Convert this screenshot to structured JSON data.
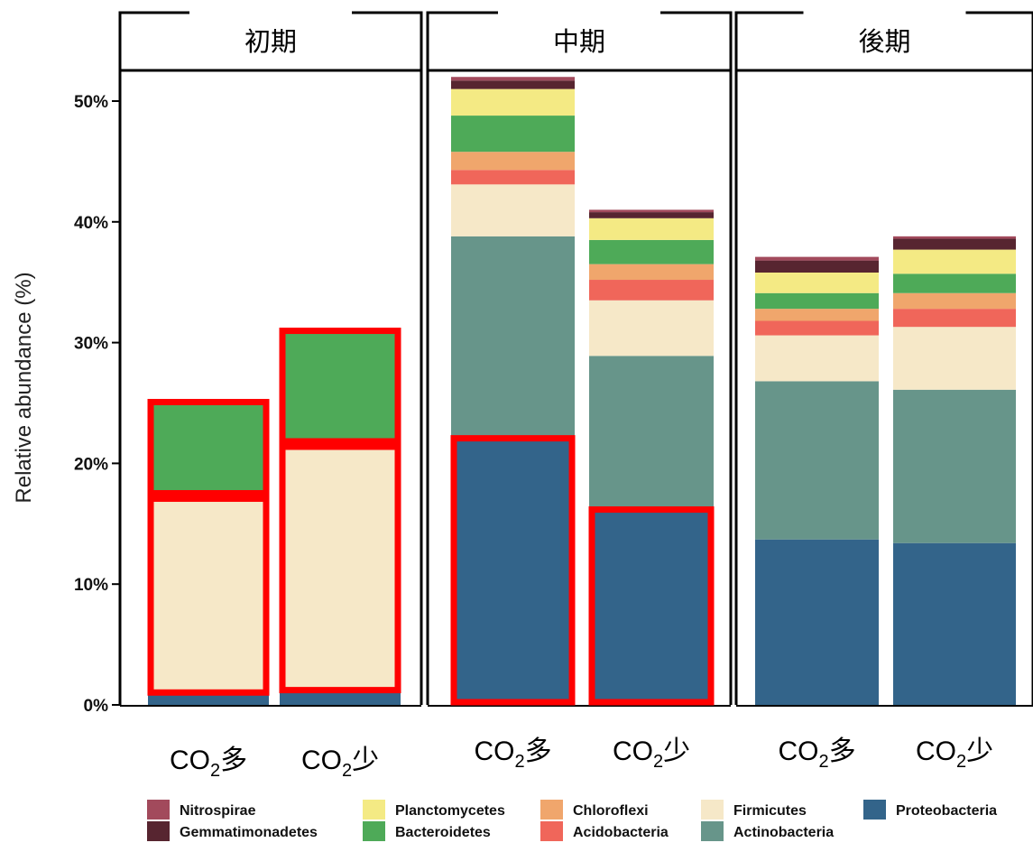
{
  "chart_data": {
    "type": "bar",
    "stacked": true,
    "ylabel": "Relative abundance (%)",
    "ylim": [
      0,
      52
    ],
    "yticks": [
      "0%",
      "10%",
      "20%",
      "30%",
      "40%",
      "50%"
    ],
    "ytick_values": [
      0,
      10,
      20,
      30,
      40,
      50
    ],
    "legend_position": "bottom",
    "panels": [
      {
        "label": "初期",
        "bars": [
          {
            "label_main": "CO",
            "label_sub": "2",
            "label_tail": "多",
            "values": {
              "Proteobacteria": 0.8,
              "Actinobacteria": 0,
              "Firmicutes": 16.5,
              "Acidobacteria": 0,
              "Chloroflexi": 0,
              "Bacteroidetes": 8.0,
              "Planctomycetes": 0,
              "Gemmatimonadetes": 0,
              "Nitrospirae": 0
            }
          },
          {
            "label_main": "CO",
            "label_sub": "2",
            "label_tail": "少",
            "values": {
              "Proteobacteria": 1.0,
              "Actinobacteria": 0,
              "Firmicutes": 20.6,
              "Acidobacteria": 0,
              "Chloroflexi": 0,
              "Bacteroidetes": 9.6,
              "Planctomycetes": 0,
              "Gemmatimonadetes": 0,
              "Nitrospirae": 0
            }
          }
        ]
      },
      {
        "label": "中期",
        "bars": [
          {
            "label_main": "CO",
            "label_sub": "2",
            "label_tail": "多",
            "values": {
              "Proteobacteria": 22.3,
              "Actinobacteria": 16.5,
              "Firmicutes": 4.3,
              "Acidobacteria": 1.2,
              "Chloroflexi": 1.5,
              "Bacteroidetes": 3.0,
              "Planctomycetes": 2.2,
              "Gemmatimonadetes": 0.7,
              "Nitrospirae": 0.3
            }
          },
          {
            "label_main": "CO",
            "label_sub": "2",
            "label_tail": "少",
            "values": {
              "Proteobacteria": 16.4,
              "Actinobacteria": 12.5,
              "Firmicutes": 4.6,
              "Acidobacteria": 1.7,
              "Chloroflexi": 1.3,
              "Bacteroidetes": 2.0,
              "Planctomycetes": 1.8,
              "Gemmatimonadetes": 0.5,
              "Nitrospirae": 0.2
            }
          }
        ]
      },
      {
        "label": "後期",
        "bars": [
          {
            "label_main": "CO",
            "label_sub": "2",
            "label_tail": "多",
            "values": {
              "Proteobacteria": 13.7,
              "Actinobacteria": 13.1,
              "Firmicutes": 3.8,
              "Acidobacteria": 1.2,
              "Chloroflexi": 1.0,
              "Bacteroidetes": 1.3,
              "Planctomycetes": 1.7,
              "Gemmatimonadetes": 1.0,
              "Nitrospirae": 0.3
            }
          },
          {
            "label_main": "CO",
            "label_sub": "2",
            "label_tail": "少",
            "values": {
              "Proteobacteria": 13.4,
              "Actinobacteria": 12.7,
              "Firmicutes": 5.2,
              "Acidobacteria": 1.5,
              "Chloroflexi": 1.3,
              "Bacteroidetes": 1.6,
              "Planctomycetes": 2.0,
              "Gemmatimonadetes": 0.9,
              "Nitrospirae": 0.2
            }
          }
        ]
      }
    ],
    "stack_order": [
      "Proteobacteria",
      "Actinobacteria",
      "Firmicutes",
      "Acidobacteria",
      "Chloroflexi",
      "Bacteroidetes",
      "Planctomycetes",
      "Gemmatimonadetes",
      "Nitrospirae"
    ],
    "series": [
      {
        "name": "Nitrospirae",
        "color": "#a24a5c"
      },
      {
        "name": "Gemmatimonadetes",
        "color": "#572530"
      },
      {
        "name": "Planctomycetes",
        "color": "#f4ea84"
      },
      {
        "name": "Bacteroidetes",
        "color": "#4eaa58"
      },
      {
        "name": "Chloroflexi",
        "color": "#f0a66c"
      },
      {
        "name": "Acidobacteria",
        "color": "#f0665a"
      },
      {
        "name": "Firmicutes",
        "color": "#f6e8c8"
      },
      {
        "name": "Actinobacteria",
        "color": "#67958a"
      },
      {
        "name": "Proteobacteria",
        "color": "#33648a"
      }
    ],
    "highlight_color": "#ff0000",
    "highlights": [
      {
        "panel": 0,
        "bar": 0,
        "series": "Bacteroidetes"
      },
      {
        "panel": 0,
        "bar": 0,
        "series": "Firmicutes"
      },
      {
        "panel": 0,
        "bar": 1,
        "series": "Bacteroidetes"
      },
      {
        "panel": 0,
        "bar": 1,
        "series": "Firmicutes"
      },
      {
        "panel": 1,
        "bar": 0,
        "series": "Proteobacteria"
      },
      {
        "panel": 1,
        "bar": 1,
        "series": "Proteobacteria"
      }
    ]
  }
}
